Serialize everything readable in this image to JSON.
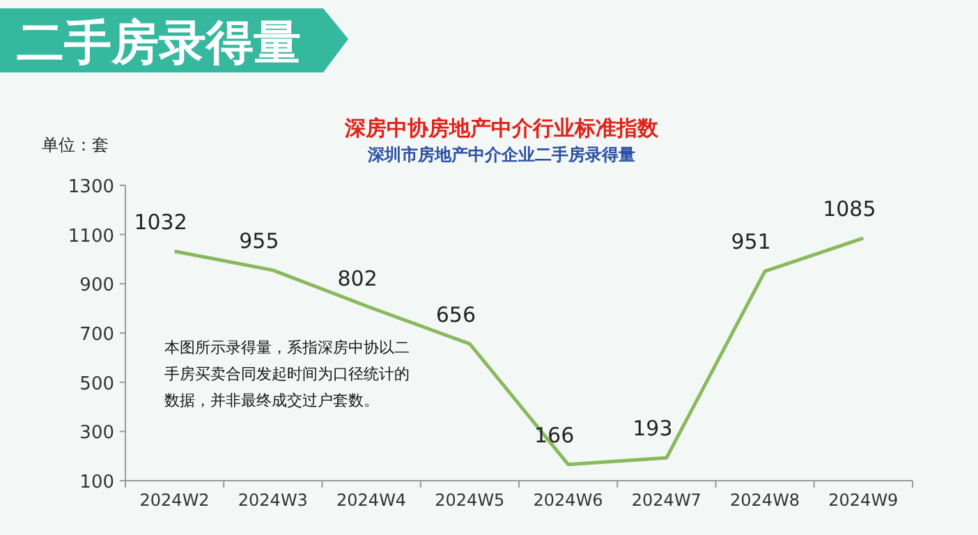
{
  "chart_data": {
    "type": "line",
    "title": "二手房录得量",
    "subtitle": "深房中协房地产中介行业标准指数",
    "ylabel": "单位：套",
    "annotations": [
      "深圳市房地产中介企业二手房录得量",
      "本图所示录得量，系指深房中协以二手房买卖合同发起时间为口径统计的数据，并非最终成交过户套数。"
    ],
    "categories": [
      "2024W2",
      "2024W3",
      "2024W4",
      "2024W5",
      "2024W6",
      "2024W7",
      "2024W8",
      "2024W9"
    ],
    "series": [
      {
        "color": "#8ab85c",
        "values": [
          1032,
          955,
          802,
          656,
          166,
          193,
          951,
          1085
        ]
      }
    ],
    "ylim": [
      100,
      1300
    ],
    "yticks": [
      100,
      300,
      500,
      700,
      900,
      1100,
      1300
    ],
    "data_labels": true,
    "marker": "none",
    "line_style": "solid"
  }
}
